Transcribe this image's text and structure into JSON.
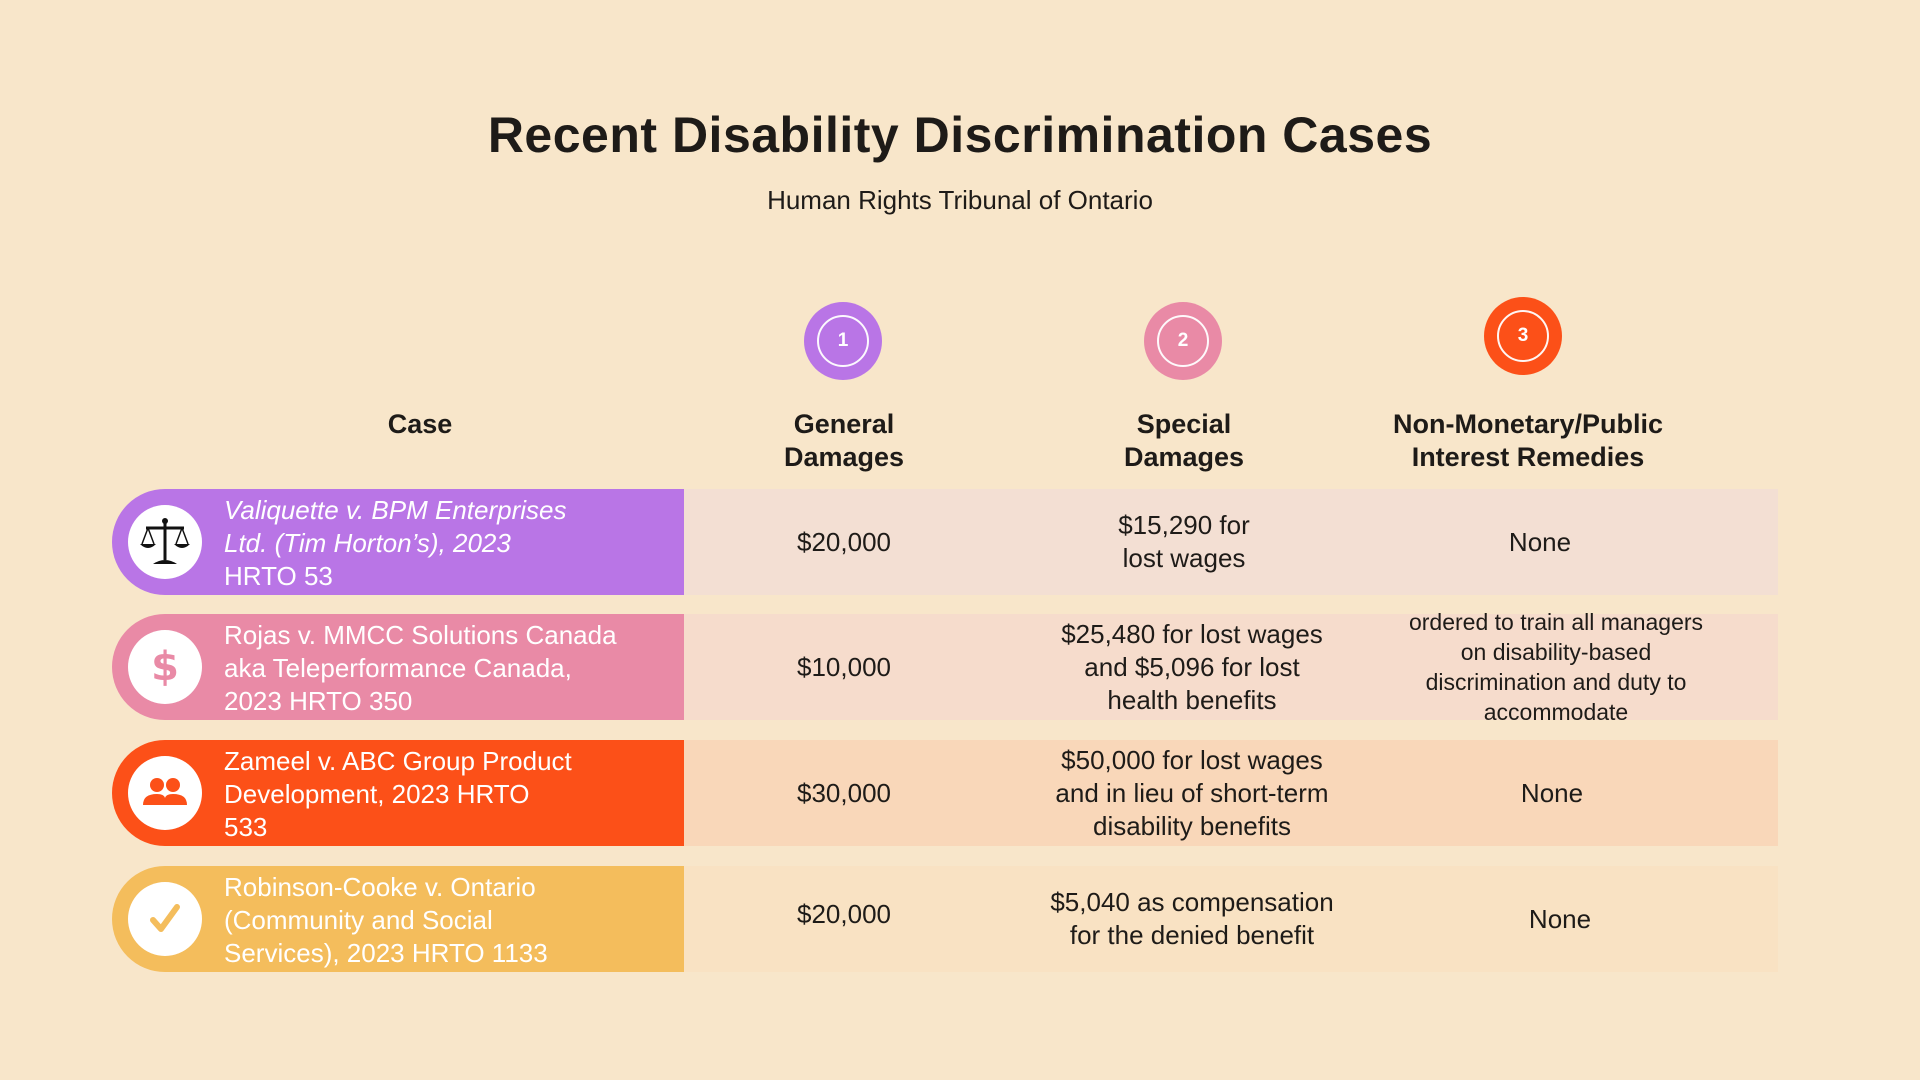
{
  "header": {
    "title": "Recent Disability Discrimination Cases",
    "subtitle": "Human Rights Tribunal of Ontario"
  },
  "badges": [
    {
      "number": "1",
      "color": "#b975e6"
    },
    {
      "number": "2",
      "color": "#e98aa6"
    },
    {
      "number": "3",
      "color": "#fc5018"
    }
  ],
  "columns": {
    "case": "Case",
    "general": [
      "General",
      "Damages"
    ],
    "special": [
      "Special",
      "Damages"
    ],
    "non_monetary": [
      "Non-Monetary/Public",
      "Interest Remedies"
    ]
  },
  "rows": [
    {
      "icon": "scales-icon",
      "accent": "#b975e6",
      "band": "#f3dfd3",
      "case_lines": [
        "Valiquette v. BPM Enterprises",
        "Ltd. (Tim Horton’s), 2023",
        "HRTO 53"
      ],
      "general": "$20,000",
      "special_lines": [
        "$15,290 for",
        "lost wages"
      ],
      "non_monetary_lines": [
        "None"
      ]
    },
    {
      "icon": "dollar-icon",
      "accent": "#e98aa6",
      "band": "#f6dccc",
      "case_lines": [
        "Rojas v. MMCC Solutions Canada",
        "aka Teleperformance Canada,",
        "2023 HRTO 350"
      ],
      "general": "$10,000",
      "special_lines": [
        "$25,480 for lost wages",
        "and $5,096 for lost",
        "health benefits"
      ],
      "non_monetary_lines": [
        "ordered to train all managers",
        "on disability-based",
        "discrimination and  duty to",
        "accommodate"
      ]
    },
    {
      "icon": "people-icon",
      "accent": "#fc5018",
      "band": "#f9d7b9",
      "case_lines": [
        "Zameel v. ABC Group Product",
        "Development, 2023 HRTO",
        "533"
      ],
      "general": "$30,000",
      "special_lines": [
        "$50,000 for lost wages",
        "and in lieu of short-term",
        "disability benefits"
      ],
      "non_monetary_lines": [
        "None"
      ]
    },
    {
      "icon": "checkmark-icon",
      "accent": "#f4bd5c",
      "band": "#f9e2c3",
      "case_lines": [
        "Robinson-Cooke v. Ontario",
        "(Community and Social",
        "Services), 2023 HRTO 1133"
      ],
      "general": "$20,000",
      "special_lines": [
        "$5,040 as compensation",
        "for the denied benefit"
      ],
      "non_monetary_lines": [
        "None"
      ]
    }
  ]
}
